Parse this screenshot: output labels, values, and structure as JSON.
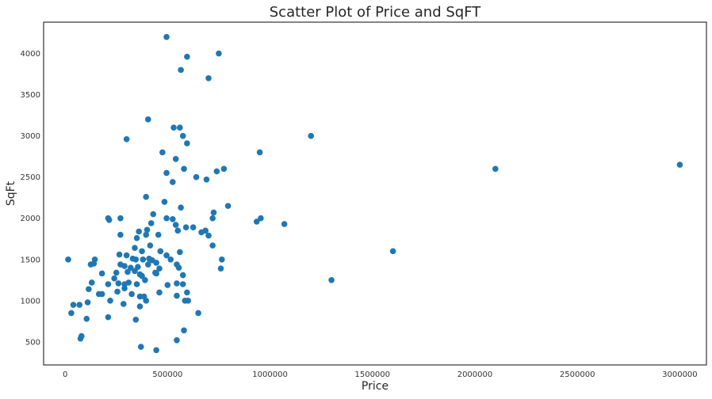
{
  "chart_data": {
    "type": "scatter",
    "title": "Scatter Plot of Price and SqFT",
    "xlabel": "Price",
    "ylabel": "SqFt",
    "xlim": [
      -105000,
      3130000
    ],
    "ylim": [
      220,
      4380
    ],
    "xticks": [
      0,
      500000,
      1000000,
      1500000,
      2000000,
      2500000,
      3000000
    ],
    "xtick_labels": [
      "0",
      "500000",
      "1000000",
      "1500000",
      "2000000",
      "2500000",
      "3000000"
    ],
    "yticks": [
      500,
      1000,
      1500,
      2000,
      2500,
      3000,
      3500,
      4000
    ],
    "ytick_labels": [
      "500",
      "1000",
      "1500",
      "2000",
      "2500",
      "3000",
      "3500",
      "4000"
    ],
    "grid": false,
    "marker_color": "#1f77b4",
    "series": [
      {
        "points": [
          [
            495000,
            4200
          ],
          [
            750000,
            4000
          ],
          [
            595000,
            3960
          ],
          [
            565000,
            3800
          ],
          [
            700000,
            3700
          ],
          [
            405000,
            3200
          ],
          [
            530000,
            3100
          ],
          [
            560000,
            3100
          ],
          [
            300000,
            2960
          ],
          [
            575000,
            3000
          ],
          [
            595000,
            2910
          ],
          [
            950000,
            2800
          ],
          [
            1200000,
            3000
          ],
          [
            475000,
            2800
          ],
          [
            540000,
            2720
          ],
          [
            3000000,
            2650
          ],
          [
            2100000,
            2600
          ],
          [
            580000,
            2600
          ],
          [
            740000,
            2570
          ],
          [
            775000,
            2600
          ],
          [
            495000,
            2550
          ],
          [
            640000,
            2500
          ],
          [
            690000,
            2470
          ],
          [
            525000,
            2440
          ],
          [
            395000,
            2260
          ],
          [
            485000,
            2200
          ],
          [
            565000,
            2130
          ],
          [
            795000,
            2150
          ],
          [
            725000,
            2070
          ],
          [
            430000,
            2050
          ],
          [
            210000,
            2000
          ],
          [
            270000,
            2000
          ],
          [
            495000,
            2000
          ],
          [
            525000,
            1990
          ],
          [
            720000,
            2000
          ],
          [
            935000,
            1960
          ],
          [
            955000,
            2000
          ],
          [
            1070000,
            1930
          ],
          [
            215000,
            1980
          ],
          [
            420000,
            1940
          ],
          [
            540000,
            1920
          ],
          [
            590000,
            1890
          ],
          [
            625000,
            1890
          ],
          [
            550000,
            1850
          ],
          [
            665000,
            1830
          ],
          [
            685000,
            1850
          ],
          [
            400000,
            1860
          ],
          [
            360000,
            1840
          ],
          [
            270000,
            1800
          ],
          [
            395000,
            1800
          ],
          [
            455000,
            1800
          ],
          [
            700000,
            1790
          ],
          [
            350000,
            1760
          ],
          [
            720000,
            1670
          ],
          [
            415000,
            1670
          ],
          [
            375000,
            1600
          ],
          [
            465000,
            1600
          ],
          [
            560000,
            1590
          ],
          [
            340000,
            1640
          ],
          [
            1600000,
            1600
          ],
          [
            15000,
            1500
          ],
          [
            145000,
            1500
          ],
          [
            265000,
            1560
          ],
          [
            300000,
            1550
          ],
          [
            330000,
            1510
          ],
          [
            345000,
            1500
          ],
          [
            380000,
            1500
          ],
          [
            410000,
            1510
          ],
          [
            425000,
            1490
          ],
          [
            495000,
            1550
          ],
          [
            515000,
            1500
          ],
          [
            765000,
            1500
          ],
          [
            140000,
            1450
          ],
          [
            125000,
            1440
          ],
          [
            270000,
            1440
          ],
          [
            290000,
            1420
          ],
          [
            320000,
            1400
          ],
          [
            355000,
            1410
          ],
          [
            405000,
            1440
          ],
          [
            445000,
            1460
          ],
          [
            460000,
            1390
          ],
          [
            545000,
            1440
          ],
          [
            555000,
            1400
          ],
          [
            760000,
            1390
          ],
          [
            250000,
            1340
          ],
          [
            305000,
            1350
          ],
          [
            340000,
            1360
          ],
          [
            365000,
            1320
          ],
          [
            375000,
            1300
          ],
          [
            440000,
            1340
          ],
          [
            445000,
            1330
          ],
          [
            575000,
            1310
          ],
          [
            180000,
            1330
          ],
          [
            240000,
            1270
          ],
          [
            390000,
            1250
          ],
          [
            260000,
            1210
          ],
          [
            290000,
            1200
          ],
          [
            310000,
            1220
          ],
          [
            350000,
            1200
          ],
          [
            130000,
            1220
          ],
          [
            210000,
            1200
          ],
          [
            500000,
            1190
          ],
          [
            545000,
            1210
          ],
          [
            575000,
            1200
          ],
          [
            1300000,
            1250
          ],
          [
            115000,
            1140
          ],
          [
            165000,
            1080
          ],
          [
            180000,
            1080
          ],
          [
            255000,
            1110
          ],
          [
            290000,
            1150
          ],
          [
            325000,
            1080
          ],
          [
            365000,
            1050
          ],
          [
            385000,
            1050
          ],
          [
            460000,
            1100
          ],
          [
            545000,
            1060
          ],
          [
            585000,
            1000
          ],
          [
            595000,
            1100
          ],
          [
            600000,
            1000
          ],
          [
            110000,
            980
          ],
          [
            70000,
            950
          ],
          [
            40000,
            950
          ],
          [
            220000,
            1000
          ],
          [
            285000,
            960
          ],
          [
            365000,
            930
          ],
          [
            395000,
            1000
          ],
          [
            30000,
            850
          ],
          [
            105000,
            780
          ],
          [
            210000,
            800
          ],
          [
            345000,
            770
          ],
          [
            650000,
            850
          ],
          [
            80000,
            570
          ],
          [
            75000,
            540
          ],
          [
            580000,
            640
          ],
          [
            370000,
            440
          ],
          [
            445000,
            400
          ],
          [
            545000,
            520
          ]
        ]
      }
    ]
  }
}
